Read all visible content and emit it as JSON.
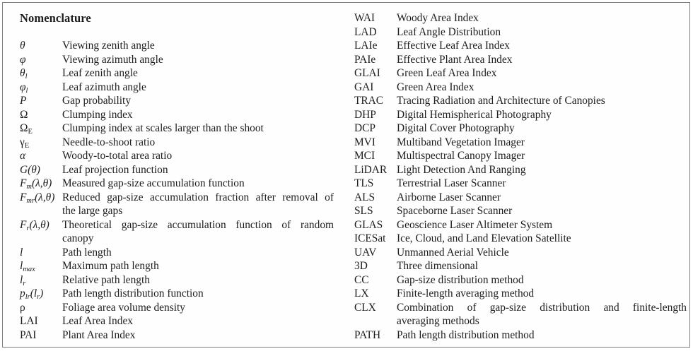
{
  "page": {
    "background_color": "#ffffff",
    "border_color": "#7c7c7c",
    "text_color": "#1d1d1d"
  },
  "box": {
    "title": "Nomenclature",
    "left_entries": [
      {
        "sym": "θ",
        "it": true,
        "def": "Viewing zenith angle"
      },
      {
        "sym": "φ",
        "it": true,
        "def": "Viewing azimuth angle"
      },
      {
        "sym": "θ_{l}",
        "it": true,
        "def": "Leaf zenith angle"
      },
      {
        "sym": "φ_{l}",
        "it": true,
        "def": "Leaf azimuth angle"
      },
      {
        "sym": "P",
        "it": true,
        "def": "Gap probability"
      },
      {
        "sym": "Ω",
        "it": false,
        "def": "Clumping index"
      },
      {
        "sym": "Ω_{E}",
        "it": false,
        "def": "Clumping index at scales larger than the shoot"
      },
      {
        "sym": "γ_{E}",
        "it": false,
        "def": "Needle-to-shoot ratio"
      },
      {
        "sym": "α",
        "it": true,
        "def": "Woody-to-total area ratio"
      },
      {
        "sym": "G(θ)",
        "it": true,
        "def": "Leaf projection function"
      },
      {
        "sym": "F_{m}(λ,θ)",
        "it": true,
        "def": "Measured gap-size accumulation function"
      },
      {
        "sym": "F_{mr}(λ,θ)",
        "it": true,
        "def_lines": [
          "Reduced gap-size accumulation fraction after removal of",
          "the large gaps"
        ]
      },
      {
        "sym": "F_{r}(λ,θ)",
        "it": true,
        "def_lines": [
          "Theoretical gap-size accumulation function of random",
          "canopy"
        ]
      },
      {
        "sym": "l",
        "it": true,
        "def": "Path length"
      },
      {
        "sym": "l_{max}",
        "it": true,
        "def": "Maximum path length"
      },
      {
        "sym": "l_{r}",
        "it": true,
        "def": "Relative path length"
      },
      {
        "sym": "p_{lr}(l_{r})",
        "it": true,
        "def": "Path length distribution function"
      },
      {
        "sym": "ρ",
        "it": false,
        "def": "Foliage area volume density"
      },
      {
        "sym": "LAI",
        "it": false,
        "def": "Leaf Area Index"
      },
      {
        "sym": "PAI",
        "it": false,
        "def": "Plant Area Index"
      }
    ],
    "right_entries": [
      {
        "sym": "WAI",
        "def": "Woody Area Index"
      },
      {
        "sym": "LAD",
        "def": "Leaf Angle Distribution"
      },
      {
        "sym": "LAIe",
        "def": "Effective Leaf Area Index"
      },
      {
        "sym": "PAIe",
        "def": "Effective Plant Area Index"
      },
      {
        "sym": "GLAI",
        "def": "Green Leaf Area Index"
      },
      {
        "sym": "GAI",
        "def": "Green Area Index"
      },
      {
        "sym": "TRAC",
        "def": "Tracing Radiation and Architecture of Canopies"
      },
      {
        "sym": "DHP",
        "def": "Digital Hemispherical Photography"
      },
      {
        "sym": "DCP",
        "def": "Digital Cover Photography"
      },
      {
        "sym": "MVI",
        "def": "Multiband Vegetation Imager"
      },
      {
        "sym": "MCI",
        "def": "Multispectral Canopy Imager"
      },
      {
        "sym": "LiDAR",
        "def": "Light Detection And Ranging"
      },
      {
        "sym": "TLS",
        "def": "Terrestrial Laser Scanner"
      },
      {
        "sym": "ALS",
        "def": "Airborne Laser Scanner"
      },
      {
        "sym": "SLS",
        "def": "Spaceborne Laser Scanner"
      },
      {
        "sym": "GLAS",
        "def": "Geoscience Laser Altimeter System"
      },
      {
        "sym": "ICESat",
        "def": "Ice, Cloud, and Land Elevation Satellite"
      },
      {
        "sym": "UAV",
        "def": "Unmanned Aerial Vehicle"
      },
      {
        "sym": "3D",
        "def": "Three dimensional"
      },
      {
        "sym": "CC",
        "def": "Gap-size distribution method"
      },
      {
        "sym": "LX",
        "def": "Finite-length averaging method"
      },
      {
        "sym": "CLX",
        "def_lines": [
          "Combination of gap-size distribution and finite-length",
          "averaging methods"
        ]
      },
      {
        "sym": "PATH",
        "def": "Path length distribution method"
      }
    ]
  }
}
